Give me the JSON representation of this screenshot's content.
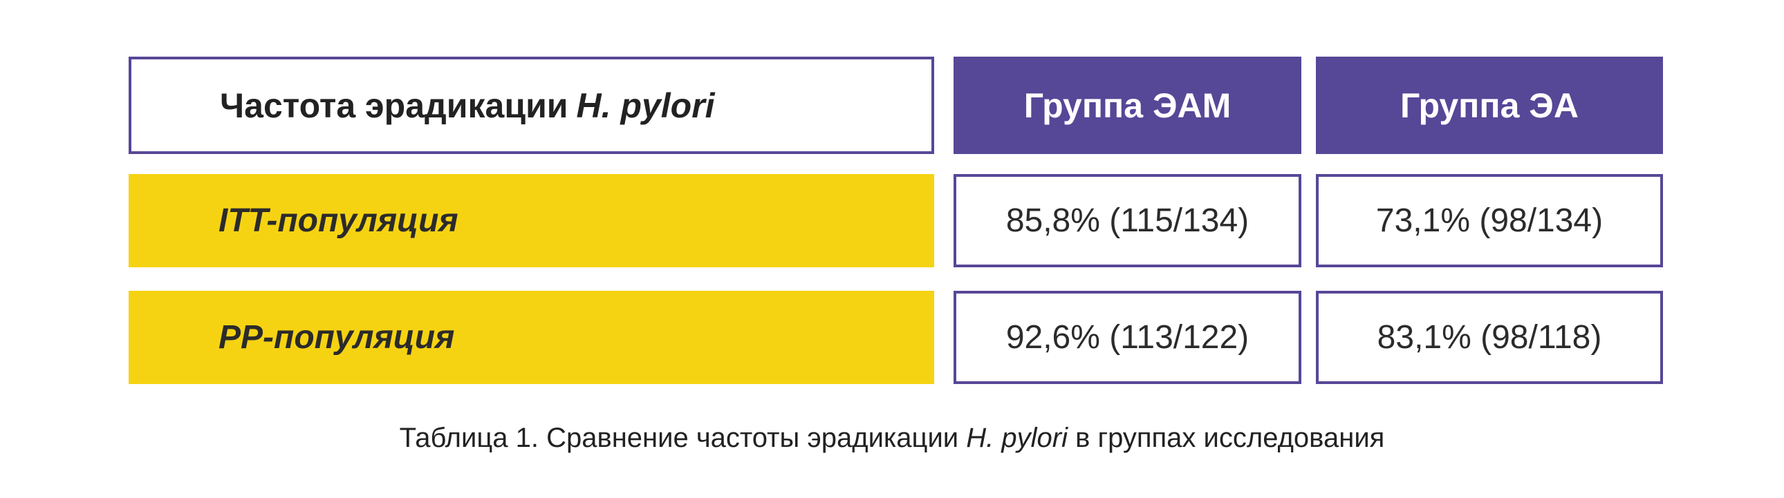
{
  "table": {
    "header": {
      "title_prefix": "Частота эрадикации",
      "title_italic": "H. pylori",
      "groups": [
        "Группа ЭАМ",
        "Группа ЭА"
      ]
    },
    "rows": [
      {
        "label": "ITT-популяция",
        "values": [
          "85,8% (115/134)",
          "73,1% (98/134)"
        ]
      },
      {
        "label": "PP-популяция",
        "values": [
          "92,6% (113/122)",
          "83,1% (98/118)"
        ]
      }
    ]
  },
  "caption": {
    "prefix": "Таблица 1. Сравнение частоты эрадикации",
    "italic": "H. pylori",
    "suffix": "в группах исследования"
  },
  "colors": {
    "accent_purple": "#574797",
    "row_yellow": "#f6d312"
  }
}
